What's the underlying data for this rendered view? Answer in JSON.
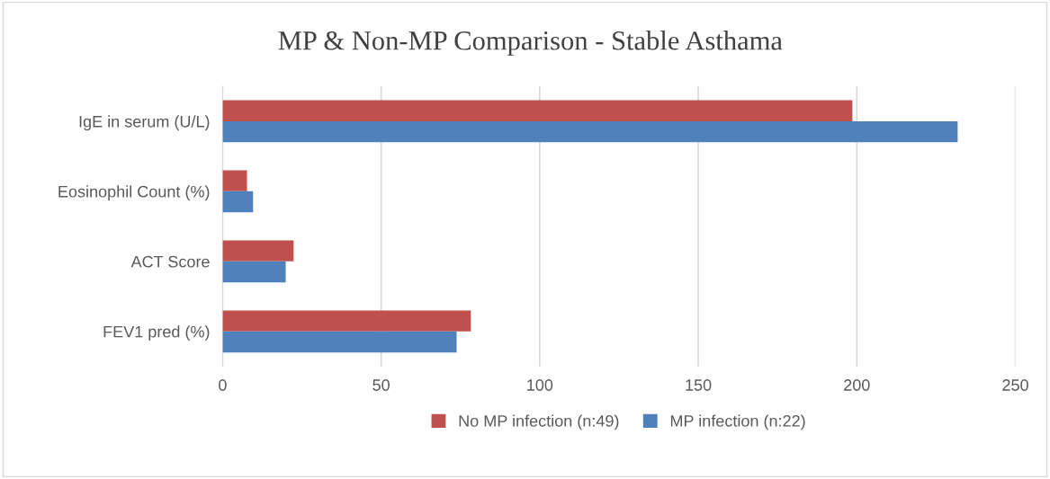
{
  "chart_data": {
    "type": "bar",
    "orientation": "horizontal",
    "title": "MP & Non-MP Comparison - Stable Asthama",
    "categories": [
      "IgE in serum (U/L)",
      "Eosinophil Count (%)",
      "ACT Score",
      "FEV1 pred (%)"
    ],
    "series": [
      {
        "name": "No MP infection (n:49)",
        "color": "#c0504d",
        "values": [
          198.6,
          7.7,
          22.4,
          78.3
        ]
      },
      {
        "name": "MP infection (n:22)",
        "color": "#4f81bd",
        "values": [
          231.8,
          9.6,
          19.9,
          73.8
        ]
      }
    ],
    "xlim": [
      0,
      250
    ],
    "xticks": [
      0,
      50,
      100,
      150,
      200,
      250
    ],
    "grid": "x",
    "legend": "bottom"
  }
}
